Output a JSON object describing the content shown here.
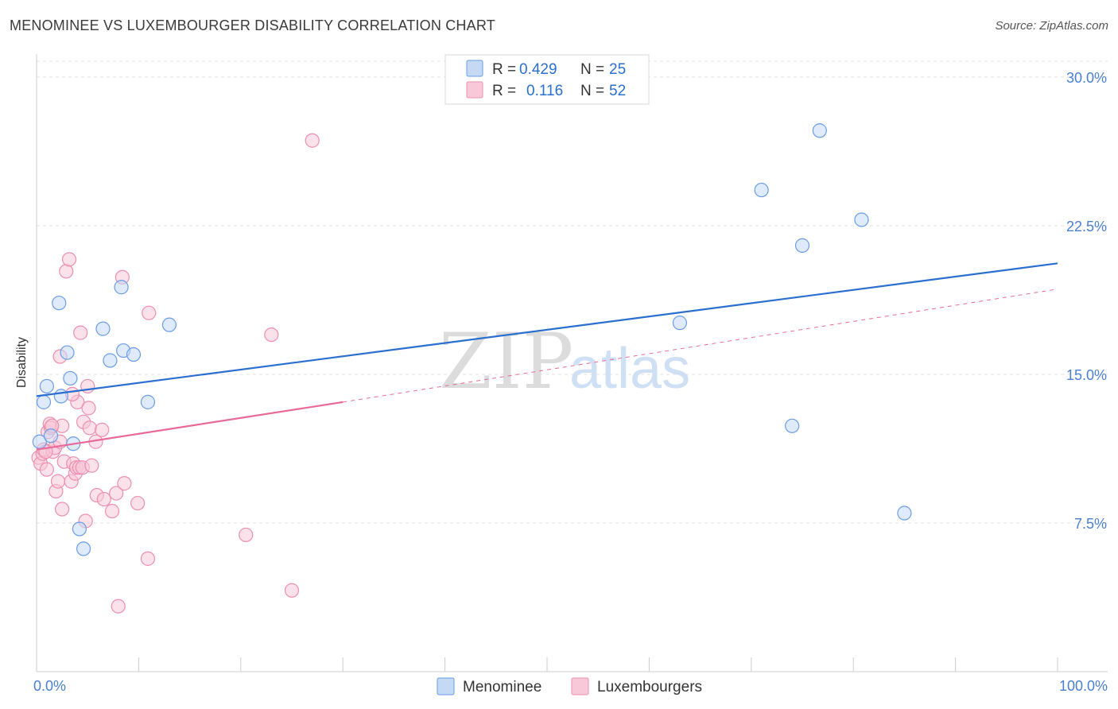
{
  "header": {
    "title": "MENOMINEE VS LUXEMBOURGER DISABILITY CORRELATION CHART",
    "source": "Source: ZipAtlas.com"
  },
  "watermark": {
    "zip": "ZIP",
    "atlas": "atlas"
  },
  "colors": {
    "menominee": "#6a9de6",
    "menominee_fill": "#c5d9f5",
    "menominee_line": "#2a6fcf",
    "luxembourger": "#ec8fae",
    "luxembourger_fill": "#f8c8d8",
    "luxembourger_line": "#e86a98",
    "tick": "#4a7fd0"
  },
  "legend": {
    "rows": [
      {
        "r_label": "R = ",
        "r_value": "0.429",
        "n_label": "N = ",
        "n_value": "25"
      },
      {
        "r_label": "R = ",
        "r_value": "0.116",
        "n_label": "N = ",
        "n_value": "52"
      }
    ],
    "bottom": [
      "Menominee",
      "Luxembourgers"
    ]
  },
  "chart_data": {
    "type": "scatter",
    "title": "MENOMINEE VS LUXEMBOURGER DISABILITY CORRELATION CHART",
    "xlabel": "",
    "ylabel": "Disability",
    "xlim": [
      0,
      100
    ],
    "ylim": [
      0,
      31
    ],
    "x_tick_labels": [
      "0.0%",
      "100.0%"
    ],
    "y_ticks": [
      7.5,
      15.0,
      22.5,
      30.0
    ],
    "y_tick_labels": [
      "7.5%",
      "15.0%",
      "22.5%",
      "30.0%"
    ],
    "grid": true,
    "series": [
      {
        "name": "Menominee",
        "points": [
          [
            0.3,
            11.6
          ],
          [
            0.7,
            13.6
          ],
          [
            1.0,
            14.4
          ],
          [
            1.4,
            11.9
          ],
          [
            2.2,
            18.6
          ],
          [
            2.4,
            13.9
          ],
          [
            3.0,
            16.1
          ],
          [
            3.3,
            14.8
          ],
          [
            3.6,
            11.5
          ],
          [
            4.2,
            7.2
          ],
          [
            4.6,
            6.2
          ],
          [
            6.5,
            17.3
          ],
          [
            7.2,
            15.7
          ],
          [
            8.3,
            19.4
          ],
          [
            8.5,
            16.2
          ],
          [
            9.5,
            16.0
          ],
          [
            10.9,
            13.6
          ],
          [
            13.0,
            17.5
          ],
          [
            63.0,
            17.6
          ],
          [
            71.0,
            24.3
          ],
          [
            74.0,
            12.4
          ],
          [
            75.0,
            21.5
          ],
          [
            76.7,
            27.3
          ],
          [
            80.8,
            22.8
          ],
          [
            85.0,
            8.0
          ]
        ],
        "trend": {
          "x": [
            0,
            100
          ],
          "y": [
            13.9,
            20.6
          ]
        }
      },
      {
        "name": "Luxembourgers",
        "points": [
          [
            0.2,
            10.8
          ],
          [
            0.4,
            10.5
          ],
          [
            0.6,
            11.0
          ],
          [
            0.7,
            11.2
          ],
          [
            1.0,
            10.2
          ],
          [
            1.1,
            12.1
          ],
          [
            1.3,
            12.5
          ],
          [
            1.4,
            12.3
          ],
          [
            1.6,
            11.1
          ],
          [
            1.8,
            11.3
          ],
          [
            1.9,
            9.1
          ],
          [
            2.1,
            9.6
          ],
          [
            2.3,
            11.6
          ],
          [
            2.3,
            15.9
          ],
          [
            2.5,
            12.4
          ],
          [
            2.5,
            8.2
          ],
          [
            2.7,
            10.6
          ],
          [
            2.9,
            20.2
          ],
          [
            3.2,
            20.8
          ],
          [
            3.4,
            9.6
          ],
          [
            3.6,
            10.5
          ],
          [
            3.8,
            10.0
          ],
          [
            3.9,
            10.3
          ],
          [
            4.0,
            13.6
          ],
          [
            4.2,
            10.3
          ],
          [
            4.3,
            17.1
          ],
          [
            4.5,
            10.3
          ],
          [
            4.6,
            12.6
          ],
          [
            4.8,
            7.6
          ],
          [
            5.0,
            14.4
          ],
          [
            5.1,
            13.3
          ],
          [
            5.2,
            12.3
          ],
          [
            5.4,
            10.4
          ],
          [
            5.8,
            11.6
          ],
          [
            5.9,
            8.9
          ],
          [
            6.4,
            12.2
          ],
          [
            6.6,
            8.7
          ],
          [
            7.4,
            8.1
          ],
          [
            7.8,
            9.0
          ],
          [
            8.0,
            3.3
          ],
          [
            8.4,
            19.9
          ],
          [
            8.6,
            9.5
          ],
          [
            9.9,
            8.5
          ],
          [
            10.9,
            5.7
          ],
          [
            11.0,
            18.1
          ],
          [
            20.5,
            6.9
          ],
          [
            23.0,
            17.0
          ],
          [
            25.0,
            4.1
          ],
          [
            27.0,
            26.8
          ],
          [
            3.5,
            14.0
          ],
          [
            1.5,
            12.4
          ],
          [
            0.9,
            11.1
          ]
        ],
        "trend": {
          "x": [
            0,
            30
          ],
          "y": [
            11.2,
            13.6
          ]
        },
        "trend_extension": {
          "x": [
            30,
            100
          ],
          "y": [
            13.6,
            19.3
          ]
        }
      }
    ]
  }
}
